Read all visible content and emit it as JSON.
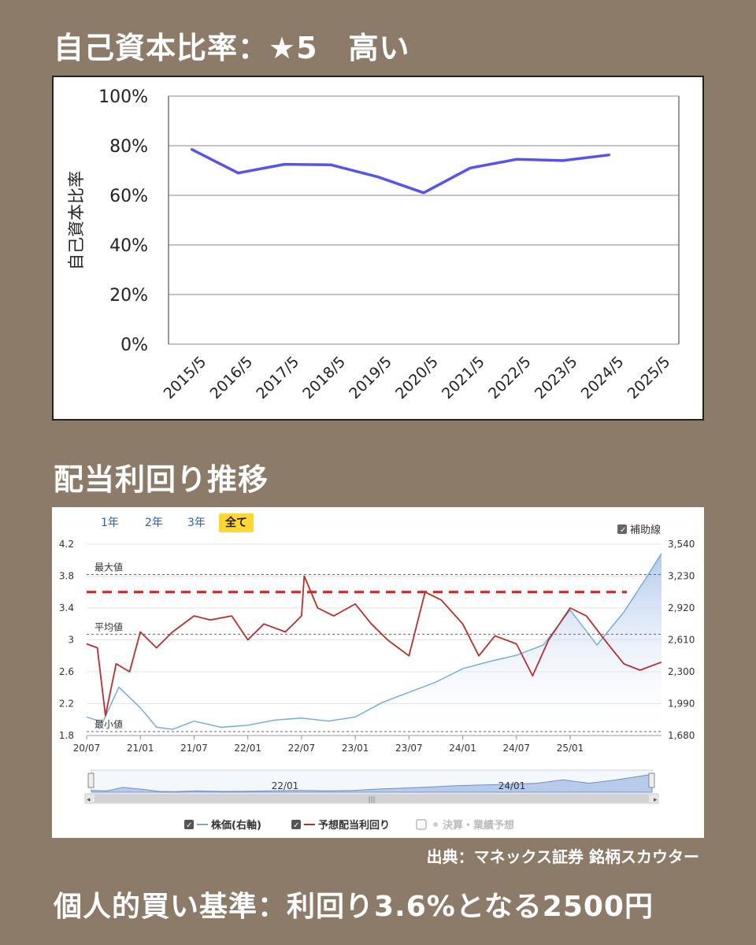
{
  "headings": {
    "equity_ratio": "自己資本比率：★5　高い",
    "dividend_yield": "配当利回り推移",
    "buy_criteria": "個人的買い基準：利回り3.6%となる2500円"
  },
  "source": "出典：マネックス証券 銘柄スカウター",
  "colors": {
    "background": "#8c7b69",
    "equity_line": "#5555ee",
    "price": "#6fa8dc",
    "yield": "#b5302a",
    "target": "#d62020"
  },
  "chart_data": [
    {
      "type": "line",
      "ylabel": "自己資本比率",
      "categories": [
        "2015/5",
        "2016/5",
        "2017/5",
        "2018/5",
        "2019/5",
        "2020/5",
        "2021/5",
        "2022/5",
        "2023/5",
        "2024/5",
        "2025/5"
      ],
      "series": [
        {
          "values": [
            78.5,
            69,
            72.5,
            72.3,
            67.5,
            61,
            71,
            74.5,
            74,
            76.3,
            null
          ]
        }
      ],
      "ylim": [
        0,
        100
      ],
      "yticks": [
        "0%",
        "20%",
        "40%",
        "60%",
        "80%",
        "100%"
      ],
      "grid": true
    },
    {
      "type": "line",
      "tabs": [
        "1年",
        "2年",
        "3年",
        "全て"
      ],
      "active_tab": "全て",
      "aux_checkbox": "補助線",
      "x_ticks": [
        "20/07",
        "21/01",
        "21/07",
        "22/01",
        "22/07",
        "23/01",
        "23/07",
        "24/01",
        "24/07",
        "25/01"
      ],
      "navigator_labels": [
        "22/01",
        "24/01"
      ],
      "left_ticks": [
        "1.8",
        "2.2",
        "2.6",
        "3",
        "3.4",
        "3.8",
        "4.2"
      ],
      "right_ticks": [
        "1,680",
        "1,990",
        "2,300",
        "2,610",
        "2,920",
        "3,230",
        "3,540"
      ],
      "left_ylim": [
        1.8,
        4.2
      ],
      "right_ylim": [
        1680,
        3540
      ],
      "ref_lines": {
        "max_label": "最大値",
        "max": 3.82,
        "avg_label": "平均値",
        "avg": 3.07,
        "min_label": "最小値",
        "min": 1.85,
        "target": 3.6
      },
      "legend": [
        "株価(右軸)",
        "予想配当利回り",
        "決算・業績予想"
      ],
      "series": [
        {
          "name": "株価(右軸)",
          "axis": "right",
          "x": [
            0,
            0.3,
            0.6,
            1,
            1.3,
            1.6,
            2,
            2.5,
            3,
            3.5,
            4,
            4.5,
            5,
            5.5,
            6,
            6.5,
            7,
            7.5,
            8,
            8.5,
            9,
            9.5,
            10,
            10.4,
            10.7
          ],
          "values": [
            1860,
            1810,
            2150,
            1950,
            1760,
            1740,
            1820,
            1760,
            1780,
            1830,
            1850,
            1820,
            1860,
            2000,
            2100,
            2200,
            2330,
            2400,
            2460,
            2560,
            2900,
            2560,
            2880,
            3200,
            3450
          ]
        },
        {
          "name": "予想配当利回り",
          "axis": "left",
          "x": [
            0,
            0.2,
            0.35,
            0.55,
            0.8,
            1,
            1.3,
            1.6,
            2,
            2.3,
            2.7,
            3,
            3.3,
            3.7,
            4,
            4.05,
            4.3,
            4.6,
            5,
            5.3,
            5.6,
            6,
            6.3,
            6.6,
            7,
            7.3,
            7.6,
            8,
            8.3,
            8.6,
            9,
            9.3,
            9.7,
            10,
            10.3,
            10.7
          ],
          "values": [
            2.95,
            2.9,
            2.05,
            2.7,
            2.6,
            3.1,
            2.9,
            3.1,
            3.3,
            3.25,
            3.3,
            3.0,
            3.2,
            3.1,
            3.3,
            3.8,
            3.4,
            3.3,
            3.45,
            3.2,
            3.0,
            2.8,
            3.6,
            3.5,
            3.2,
            2.8,
            3.05,
            2.95,
            2.55,
            3.0,
            3.4,
            3.3,
            2.95,
            2.7,
            2.62,
            2.72
          ]
        }
      ]
    }
  ]
}
